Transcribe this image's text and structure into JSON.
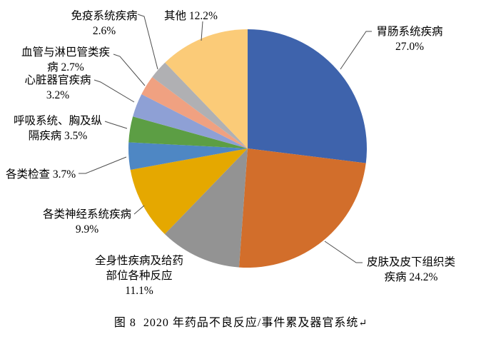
{
  "figure": {
    "caption": {
      "text": "图 8  2020 年药品不良反应/事件累及器官系统",
      "return_mark": "↵"
    }
  },
  "callouts": {
    "gastro": "胃肠系统疾病 27.0%",
    "skin": "皮肤及皮下组织类疾病 24.2%",
    "systemic": "全身性疾病及给药部位各种反应 11.1%",
    "nervous": "各类神经系统疾病 9.9%",
    "exam": "各类检查 3.7%",
    "respiratory": "呼吸系统、胸及纵隔疾病 3.5%",
    "cardiac": "心脏器官疾病 3.2%",
    "vascular": "血管与淋巴管类疾病 2.7%",
    "immune": "免疫系统疾病 2.6%",
    "other": "其他 12.2%"
  },
  "chart_data": {
    "type": "pie",
    "title": "图 8  2020 年药品不良反应/事件累及器官系统",
    "unit": "%",
    "start_angle_deg": 0,
    "direction": "clockwise",
    "legend_position": "none",
    "label_style": "callout-with-leader-lines",
    "leader_line_color": "#4d4d4d",
    "slices": [
      {
        "key": "gastro",
        "label": "胃肠系统疾病",
        "value": 27.0,
        "color": "#3E63AC"
      },
      {
        "key": "skin",
        "label": "皮肤及皮下组织类疾病",
        "value": 24.2,
        "color": "#D26E2B"
      },
      {
        "key": "systemic",
        "label": "全身性疾病及给药部位各种反应",
        "value": 11.1,
        "color": "#939393"
      },
      {
        "key": "nervous",
        "label": "各类神经系统疾病",
        "value": 9.9,
        "color": "#E5A800"
      },
      {
        "key": "exam",
        "label": "各类检查",
        "value": 3.7,
        "color": "#4E87C4"
      },
      {
        "key": "respiratory",
        "label": "呼吸系统、胸及纵隔疾病",
        "value": 3.5,
        "color": "#5C9E44"
      },
      {
        "key": "cardiac",
        "label": "心脏器官疾病",
        "value": 3.2,
        "color": "#8EA0D5"
      },
      {
        "key": "vascular",
        "label": "血管与淋巴管类疾病",
        "value": 2.7,
        "color": "#F0A181"
      },
      {
        "key": "immune",
        "label": "免疫系统疾病",
        "value": 2.6,
        "color": "#B0B0B3"
      },
      {
        "key": "other",
        "label": "其他",
        "value": 12.2,
        "color": "#FBCB78"
      }
    ]
  }
}
